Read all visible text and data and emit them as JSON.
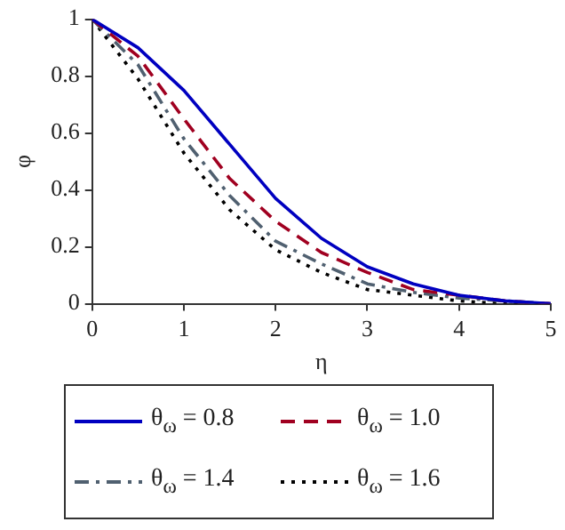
{
  "chart_data": {
    "type": "line",
    "xlabel": "η",
    "ylabel": "φ",
    "x": [
      0,
      0.5,
      1,
      1.5,
      2,
      2.5,
      3,
      3.5,
      4,
      4.5,
      5
    ],
    "series": [
      {
        "name": "θ$_{ω}$ = 0.8",
        "color": "#0000c0",
        "line_style": "solid",
        "values": [
          1,
          0.9,
          0.75,
          0.56,
          0.37,
          0.23,
          0.13,
          0.07,
          0.03,
          0.01,
          0
        ]
      },
      {
        "name": "θ$_{ω}$ = 1.0",
        "color": "#a00020",
        "line_style": "dashed",
        "values": [
          1,
          0.87,
          0.65,
          0.44,
          0.29,
          0.18,
          0.11,
          0.05,
          0.03,
          0.01,
          0
        ]
      },
      {
        "name": "θ$_{ω}$ = 1.4",
        "color": "#506070",
        "line_style": "dashdot",
        "values": [
          1,
          0.84,
          0.58,
          0.38,
          0.22,
          0.14,
          0.07,
          0.04,
          0.02,
          0.01,
          0
        ]
      },
      {
        "name": "θ$_{ω}$ = 1.6",
        "color": "#000000",
        "line_style": "dotted",
        "values": [
          1,
          0.79,
          0.53,
          0.33,
          0.19,
          0.11,
          0.05,
          0.03,
          0.01,
          0,
          0
        ]
      }
    ],
    "xlim": [
      0,
      5
    ],
    "xticks": [
      0,
      1,
      2,
      3,
      4,
      5
    ],
    "ylim": [
      0,
      1
    ],
    "yticks": [
      0,
      0.2,
      0.4,
      0.6,
      0.8,
      1
    ],
    "grid": false,
    "legend": "bottom",
    "marker": "none"
  }
}
